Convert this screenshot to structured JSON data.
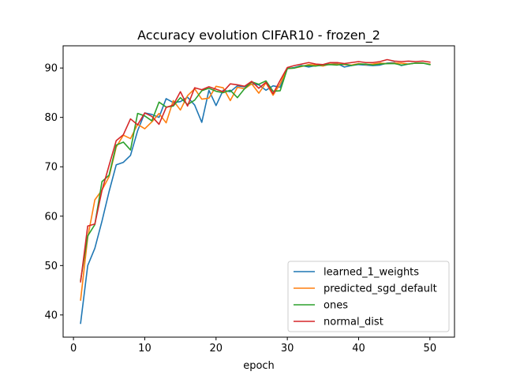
{
  "chart_data": {
    "type": "line",
    "title": "Accuracy evolution CIFAR10 - frozen_2",
    "xlabel": "epoch",
    "ylabel": "",
    "xlim": [
      -1.45,
      53.45
    ],
    "ylim": [
      35.5,
      94.5
    ],
    "xticks": [
      0,
      10,
      20,
      30,
      40,
      50
    ],
    "yticks": [
      40,
      50,
      60,
      70,
      80,
      90
    ],
    "grid": false,
    "legend_position": "lower right",
    "x": [
      1,
      2,
      3,
      4,
      5,
      6,
      7,
      8,
      9,
      10,
      11,
      12,
      13,
      14,
      15,
      16,
      17,
      18,
      19,
      20,
      21,
      22,
      23,
      24,
      25,
      26,
      27,
      28,
      29,
      30,
      31,
      32,
      33,
      34,
      35,
      36,
      37,
      38,
      39,
      40,
      41,
      42,
      43,
      44,
      45,
      46,
      47,
      48,
      49,
      50
    ],
    "series": [
      {
        "name": "learned_1_weights",
        "color": "#1f77b4",
        "values": [
          38.3,
          50.0,
          53.5,
          59.0,
          65.0,
          70.4,
          70.9,
          72.3,
          77.3,
          80.9,
          80.6,
          80.0,
          83.8,
          83.0,
          83.2,
          84.1,
          82.5,
          79.0,
          85.5,
          82.4,
          85.5,
          85.2,
          86.4,
          86.2,
          86.8,
          86.6,
          85.5,
          86.4,
          86.1,
          89.9,
          90.1,
          90.5,
          90.2,
          90.5,
          90.6,
          90.8,
          90.9,
          90.2,
          90.5,
          90.7,
          90.6,
          90.5,
          90.6,
          91.0,
          91.1,
          90.5,
          90.8,
          91.0,
          91.0,
          90.7
        ]
      },
      {
        "name": "predicted_sgd_default",
        "color": "#ff7f0e",
        "values": [
          43.0,
          55.7,
          63.3,
          65.3,
          68.0,
          74.0,
          76.4,
          75.7,
          78.6,
          77.7,
          79.1,
          80.8,
          78.9,
          83.4,
          81.5,
          84.4,
          85.8,
          83.7,
          83.9,
          86.3,
          86.0,
          83.4,
          86.1,
          85.8,
          86.8,
          84.9,
          87.0,
          84.5,
          86.8,
          89.9,
          90.0,
          90.3,
          90.7,
          90.6,
          90.4,
          90.8,
          90.8,
          90.7,
          90.6,
          90.9,
          90.7,
          90.8,
          91.0,
          90.9,
          91.0,
          91.0,
          90.8,
          91.0,
          91.0,
          90.8
        ]
      },
      {
        "name": "ones",
        "color": "#2ca02c",
        "values": [
          47.0,
          56.0,
          58.3,
          67.0,
          68.3,
          74.4,
          75.0,
          73.4,
          80.8,
          80.3,
          79.3,
          83.1,
          82.1,
          82.3,
          84.0,
          82.6,
          83.5,
          85.4,
          85.9,
          85.3,
          85.0,
          85.5,
          84.0,
          85.8,
          87.2,
          86.7,
          87.4,
          85.3,
          85.4,
          89.9,
          90.0,
          90.4,
          90.5,
          90.4,
          90.6,
          90.7,
          90.6,
          90.8,
          90.5,
          90.8,
          90.8,
          90.6,
          90.8,
          90.9,
          90.9,
          90.6,
          90.8,
          91.0,
          91.0,
          90.7
        ]
      },
      {
        "name": "normal_dist",
        "color": "#d62728",
        "values": [
          46.7,
          58.0,
          58.4,
          65.2,
          70.3,
          75.3,
          76.5,
          79.7,
          78.5,
          80.9,
          80.2,
          78.6,
          82.0,
          82.5,
          85.2,
          82.3,
          86.0,
          85.6,
          86.2,
          85.7,
          85.2,
          86.8,
          86.6,
          86.3,
          87.3,
          85.9,
          87.1,
          84.8,
          87.5,
          90.1,
          90.5,
          90.8,
          91.1,
          90.8,
          90.7,
          91.1,
          91.1,
          90.9,
          91.1,
          91.3,
          91.1,
          91.1,
          91.3,
          91.7,
          91.4,
          91.3,
          91.4,
          91.3,
          91.4,
          91.2
        ]
      }
    ]
  }
}
